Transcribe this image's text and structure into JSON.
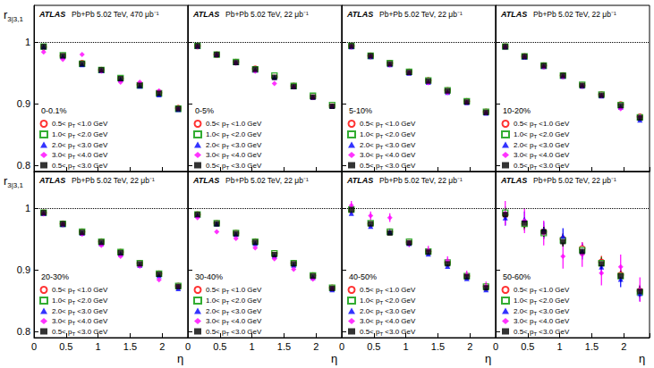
{
  "chart_data": [
    {
      "type": "scatter",
      "brand": "ATLAS",
      "subtitle": "Pb+Pb 5.02 TeV, 470 μb⁻¹",
      "annotation": "0-0.1%",
      "y_label": "r3|3,1",
      "tick_labels": "y",
      "xlim": [
        0,
        2.4
      ],
      "xticks": [
        0,
        0.5,
        1,
        1.5,
        2
      ],
      "ylim": [
        0.79,
        1.06
      ],
      "yticks": [
        0.8,
        0.9,
        1
      ],
      "reference_line": 1,
      "x": [
        0.15,
        0.45,
        0.75,
        1.05,
        1.35,
        1.65,
        1.95,
        2.25
      ],
      "series": [
        {
          "name": "0.5< pT <1.0 GeV",
          "color": "#ff0000",
          "marker": "open_circle",
          "values": [
            0.992,
            0.978,
            0.966,
            0.955,
            0.941,
            0.931,
            0.918,
            0.893
          ]
        },
        {
          "name": "1.0< pT <2.0 GeV",
          "color": "#009900",
          "marker": "open_square",
          "values": [
            0.993,
            0.979,
            0.965,
            0.955,
            0.942,
            0.93,
            0.917,
            0.892
          ]
        },
        {
          "name": "2.0< pT <3.0 GeV",
          "color": "#0000ff",
          "marker": "triangle",
          "values": [
            0.993,
            0.977,
            0.964,
            0.954,
            0.94,
            0.929,
            0.915,
            0.891
          ]
        },
        {
          "name": "3.0< pT <4.0 GeV",
          "color": "#ff00ff",
          "marker": "diamond",
          "values": [
            0.984,
            0.972,
            0.98,
            0.953,
            0.935,
            0.935,
            0.921,
            0.892
          ]
        },
        {
          "name": "0.5< pT <3.0 GeV",
          "color": "#000000",
          "marker": "square",
          "values": [
            0.993,
            0.978,
            0.965,
            0.955,
            0.941,
            0.93,
            0.917,
            0.892
          ]
        }
      ]
    },
    {
      "type": "scatter",
      "brand": "ATLAS",
      "subtitle": "Pb+Pb 5.02 TeV, 22 μb⁻¹",
      "annotation": "0-5%",
      "tick_labels": false,
      "xlim": [
        0,
        2.4
      ],
      "xticks": [
        0,
        0.5,
        1,
        1.5,
        2
      ],
      "ylim": [
        0.79,
        1.06
      ],
      "yticks": [
        0.8,
        0.9,
        1
      ],
      "reference_line": 1,
      "x": [
        0.15,
        0.45,
        0.75,
        1.05,
        1.35,
        1.65,
        1.95,
        2.25
      ],
      "series": [
        {
          "name": "0.5< pT <1.0 GeV",
          "color": "#ff0000",
          "marker": "open_circle",
          "values": [
            0.994,
            0.98,
            0.968,
            0.957,
            0.944,
            0.929,
            0.912,
            0.897
          ]
        },
        {
          "name": "1.0< pT <2.0 GeV",
          "color": "#009900",
          "marker": "open_square",
          "values": [
            0.994,
            0.98,
            0.968,
            0.956,
            0.946,
            0.929,
            0.913,
            0.898
          ]
        },
        {
          "name": "2.0< pT <3.0 GeV",
          "color": "#0000ff",
          "marker": "triangle",
          "values": [
            0.994,
            0.98,
            0.967,
            0.955,
            0.943,
            0.928,
            0.911,
            0.896
          ]
        },
        {
          "name": "3.0< pT <4.0 GeV",
          "color": "#ff00ff",
          "marker": "diamond",
          "values": [
            0.993,
            0.979,
            0.966,
            0.953,
            0.933,
            0.927,
            0.91,
            0.896
          ]
        },
        {
          "name": "0.5< pT <3.0 GeV",
          "color": "#000000",
          "marker": "square",
          "values": [
            0.994,
            0.98,
            0.967,
            0.956,
            0.943,
            0.928,
            0.911,
            0.896
          ]
        }
      ]
    },
    {
      "type": "scatter",
      "brand": "ATLAS",
      "subtitle": "Pb+Pb 5.02 TeV, 22 μb⁻¹",
      "annotation": "5-10%",
      "tick_labels": false,
      "xlim": [
        0,
        2.4
      ],
      "xticks": [
        0,
        0.5,
        1,
        1.5,
        2
      ],
      "ylim": [
        0.79,
        1.06
      ],
      "yticks": [
        0.8,
        0.9,
        1
      ],
      "reference_line": 1,
      "x": [
        0.15,
        0.45,
        0.75,
        1.05,
        1.35,
        1.65,
        1.95,
        2.25
      ],
      "series": [
        {
          "name": "0.5< pT <1.0 GeV",
          "color": "#ff0000",
          "marker": "open_circle",
          "values": [
            0.994,
            0.978,
            0.966,
            0.952,
            0.938,
            0.922,
            0.904,
            0.887
          ]
        },
        {
          "name": "1.0< pT <2.0 GeV",
          "color": "#009900",
          "marker": "open_square",
          "values": [
            0.994,
            0.978,
            0.966,
            0.952,
            0.938,
            0.922,
            0.904,
            0.887
          ]
        },
        {
          "name": "2.0< pT <3.0 GeV",
          "color": "#0000ff",
          "marker": "triangle",
          "values": [
            0.993,
            0.977,
            0.964,
            0.95,
            0.935,
            0.919,
            0.902,
            0.885
          ]
        },
        {
          "name": "3.0< pT <4.0 GeV",
          "color": "#ff00ff",
          "marker": "diamond",
          "values": [
            0.993,
            0.977,
            0.963,
            0.95,
            0.934,
            0.918,
            0.902,
            0.885
          ]
        },
        {
          "name": "0.5< pT <3.0 GeV",
          "color": "#000000",
          "marker": "square",
          "values": [
            0.994,
            0.978,
            0.965,
            0.951,
            0.937,
            0.921,
            0.903,
            0.886
          ]
        }
      ]
    },
    {
      "type": "scatter",
      "brand": "ATLAS",
      "subtitle": "Pb+Pb 5.02 TeV, 22 μb⁻¹",
      "annotation": "10-20%",
      "tick_labels": false,
      "xlim": [
        0,
        2.4
      ],
      "xticks": [
        0,
        0.5,
        1,
        1.5,
        2
      ],
      "ylim": [
        0.79,
        1.06
      ],
      "yticks": [
        0.8,
        0.9,
        1
      ],
      "reference_line": 1,
      "x": [
        0.15,
        0.45,
        0.75,
        1.05,
        1.35,
        1.65,
        1.95,
        2.25
      ],
      "series": [
        {
          "name": "0.5< pT <1.0 GeV",
          "color": "#ff0000",
          "marker": "open_circle",
          "values": [
            0.993,
            0.977,
            0.962,
            0.946,
            0.93,
            0.915,
            0.899,
            0.879
          ]
        },
        {
          "name": "1.0< pT <2.0 GeV",
          "color": "#009900",
          "marker": "open_square",
          "values": [
            0.993,
            0.977,
            0.962,
            0.946,
            0.931,
            0.915,
            0.898,
            0.878
          ]
        },
        {
          "name": "2.0< pT <3.0 GeV",
          "color": "#0000ff",
          "marker": "triangle",
          "values": [
            0.993,
            0.976,
            0.961,
            0.945,
            0.929,
            0.913,
            0.895,
            0.874
          ]
        },
        {
          "name": "3.0< pT <4.0 GeV",
          "color": "#ff00ff",
          "marker": "diamond",
          "values": [
            0.992,
            0.976,
            0.96,
            0.944,
            0.929,
            0.913,
            0.892,
            0.879
          ]
        },
        {
          "name": "0.5< pT <3.0 GeV",
          "color": "#000000",
          "marker": "square",
          "values": [
            0.993,
            0.977,
            0.962,
            0.946,
            0.93,
            0.914,
            0.897,
            0.877
          ]
        }
      ]
    },
    {
      "type": "scatter",
      "brand": "ATLAS",
      "subtitle": "Pb+Pb 5.02 TeV, 22 μb⁻¹",
      "annotation": "20-30%",
      "y_label": "r3|3,1",
      "x_label": "η",
      "tick_labels": true,
      "xlim": [
        0,
        2.4
      ],
      "xticks": [
        0,
        0.5,
        1,
        1.5,
        2
      ],
      "ylim": [
        0.79,
        1.06
      ],
      "yticks": [
        0.8,
        0.9,
        1
      ],
      "reference_line": 1,
      "x": [
        0.15,
        0.45,
        0.75,
        1.05,
        1.35,
        1.65,
        1.95,
        2.25
      ],
      "series": [
        {
          "name": "0.5< pT <1.0 GeV",
          "color": "#ff0000",
          "marker": "open_circle",
          "values": [
            0.993,
            0.975,
            0.962,
            0.946,
            0.929,
            0.911,
            0.894,
            0.874
          ]
        },
        {
          "name": "1.0< pT <2.0 GeV",
          "color": "#009900",
          "marker": "open_square",
          "values": [
            0.993,
            0.975,
            0.962,
            0.946,
            0.929,
            0.911,
            0.894,
            0.874
          ]
        },
        {
          "name": "2.0< pT <3.0 GeV",
          "color": "#0000ff",
          "marker": "triangle",
          "values": [
            0.992,
            0.974,
            0.96,
            0.943,
            0.926,
            0.908,
            0.891,
            0.87
          ]
        },
        {
          "name": "3.0< pT <4.0 GeV",
          "color": "#ff00ff",
          "marker": "diamond",
          "values": [
            0.991,
            0.974,
            0.958,
            0.94,
            0.922,
            0.906,
            0.884,
            0.873
          ]
        },
        {
          "name": "0.5< pT <3.0 GeV",
          "color": "#000000",
          "marker": "square",
          "values": [
            0.993,
            0.975,
            0.961,
            0.945,
            0.928,
            0.91,
            0.893,
            0.873
          ]
        }
      ]
    },
    {
      "type": "scatter",
      "brand": "ATLAS",
      "subtitle": "Pb+Pb 5.02 TeV, 22 μb⁻¹",
      "annotation": "30-40%",
      "x_label": "η",
      "tick_labels": "x",
      "xlim": [
        0,
        2.4
      ],
      "xticks": [
        0,
        0.5,
        1,
        1.5,
        2
      ],
      "ylim": [
        0.79,
        1.06
      ],
      "yticks": [
        0.8,
        0.9,
        1
      ],
      "reference_line": 1,
      "x": [
        0.15,
        0.45,
        0.75,
        1.05,
        1.35,
        1.65,
        1.95,
        2.25
      ],
      "series": [
        {
          "name": "0.5< pT <1.0 GeV",
          "color": "#ff0000",
          "marker": "open_circle",
          "values": [
            0.99,
            0.976,
            0.96,
            0.946,
            0.927,
            0.911,
            0.891,
            0.871
          ]
        },
        {
          "name": "1.0< pT <2.0 GeV",
          "color": "#009900",
          "marker": "open_square",
          "values": [
            0.99,
            0.976,
            0.96,
            0.946,
            0.927,
            0.911,
            0.891,
            0.871
          ]
        },
        {
          "name": "2.0< pT <3.0 GeV",
          "color": "#0000ff",
          "marker": "triangle",
          "values": [
            0.989,
            0.975,
            0.958,
            0.943,
            0.923,
            0.908,
            0.888,
            0.868
          ]
        },
        {
          "name": "3.0< pT <4.0 GeV",
          "color": "#ff00ff",
          "marker": "diamond",
          "values": [
            0.985,
            0.962,
            0.951,
            0.936,
            0.918,
            0.901,
            0.885,
            0.87
          ]
        },
        {
          "name": "0.5< pT <3.0 GeV",
          "color": "#000000",
          "marker": "square",
          "values": [
            0.99,
            0.975,
            0.959,
            0.945,
            0.925,
            0.91,
            0.89,
            0.87
          ]
        }
      ]
    },
    {
      "type": "scatter",
      "brand": "ATLAS",
      "subtitle": "Pb+Pb 5.02 TeV, 22 μb⁻¹",
      "annotation": "40-50%",
      "x_label": "η",
      "tick_labels": "x",
      "xlim": [
        0,
        2.4
      ],
      "xticks": [
        0,
        0.5,
        1,
        1.5,
        2
      ],
      "ylim": [
        0.79,
        1.06
      ],
      "yticks": [
        0.8,
        0.9,
        1
      ],
      "reference_line": 1,
      "x": [
        0.15,
        0.45,
        0.75,
        1.05,
        1.35,
        1.65,
        1.95,
        2.25
      ],
      "series": [
        {
          "name": "0.5< pT <1.0 GeV",
          "color": "#ff0000",
          "marker": "open_circle",
          "values": [
            0.997,
            0.975,
            0.962,
            0.945,
            0.93,
            0.912,
            0.89,
            0.873
          ]
        },
        {
          "name": "1.0< pT <2.0 GeV",
          "color": "#009900",
          "marker": "open_square",
          "values": [
            0.998,
            0.976,
            0.962,
            0.946,
            0.93,
            0.912,
            0.89,
            0.873
          ]
        },
        {
          "name": "2.0< pT <3.0 GeV",
          "color": "#0000ff",
          "marker": "triangle",
          "values": [
            0.992,
            0.971,
            0.962,
            0.943,
            0.926,
            0.906,
            0.886,
            0.868
          ]
        },
        {
          "name": "3.0< pT <4.0 GeV",
          "color": "#ff00ff",
          "marker": "diamond",
          "values": [
            1.005,
            0.988,
            0.985,
            0.944,
            0.932,
            0.915,
            0.892,
            0.874
          ],
          "errors": [
            0.007,
            0.007,
            0.007,
            0.007,
            0.007,
            0.007,
            0.007,
            0.007
          ]
        },
        {
          "name": "0.5< pT <3.0 GeV",
          "color": "#000000",
          "marker": "square",
          "values": [
            0.998,
            0.975,
            0.96,
            0.944,
            0.929,
            0.91,
            0.889,
            0.871
          ]
        }
      ]
    },
    {
      "type": "scatter",
      "brand": "ATLAS",
      "subtitle": "Pb+Pb 5.02 TeV, 22 μb⁻¹",
      "annotation": "50-60%",
      "x_label": "η",
      "tick_labels": "x",
      "xlim": [
        0,
        2.4
      ],
      "xticks": [
        0,
        0.5,
        1,
        1.5,
        2
      ],
      "ylim": [
        0.79,
        1.06
      ],
      "yticks": [
        0.8,
        0.9,
        1
      ],
      "reference_line": 1,
      "x": [
        0.15,
        0.45,
        0.75,
        1.05,
        1.35,
        1.65,
        1.95,
        2.25
      ],
      "series": [
        {
          "name": "0.5< pT <1.0 GeV",
          "color": "#ff0000",
          "marker": "open_circle",
          "values": [
            0.99,
            0.975,
            0.962,
            0.95,
            0.935,
            0.913,
            0.892,
            0.866
          ],
          "errors": [
            0.01,
            0.01,
            0.01,
            0.01,
            0.01,
            0.01,
            0.01,
            0.01
          ]
        },
        {
          "name": "1.0< pT <2.0 GeV",
          "color": "#009900",
          "marker": "open_square",
          "values": [
            0.993,
            0.975,
            0.96,
            0.948,
            0.932,
            0.911,
            0.89,
            0.864
          ],
          "errors": [
            0.01,
            0.01,
            0.01,
            0.01,
            0.01,
            0.01,
            0.01,
            0.01
          ]
        },
        {
          "name": "2.0< pT <3.0 GeV",
          "color": "#0000ff",
          "marker": "triangle",
          "values": [
            0.985,
            0.982,
            0.965,
            0.955,
            0.93,
            0.905,
            0.885,
            0.862
          ],
          "errors": [
            0.013,
            0.013,
            0.013,
            0.013,
            0.013,
            0.013,
            0.013,
            0.013
          ]
        },
        {
          "name": "3.0< pT <4.0 GeV",
          "color": "#ff00ff",
          "marker": "diamond",
          "values": [
            0.992,
            0.98,
            0.96,
            0.922,
            0.925,
            0.895,
            0.905,
            0.868
          ],
          "errors": [
            0.02,
            0.02,
            0.02,
            0.02,
            0.02,
            0.02,
            0.02,
            0.02
          ]
        },
        {
          "name": "0.5< pT <3.0 GeV",
          "color": "#000000",
          "marker": "square",
          "values": [
            0.99,
            0.976,
            0.962,
            0.946,
            0.93,
            0.91,
            0.89,
            0.865
          ],
          "errors": [
            0.008,
            0.008,
            0.008,
            0.008,
            0.008,
            0.008,
            0.008,
            0.008
          ]
        }
      ]
    }
  ]
}
